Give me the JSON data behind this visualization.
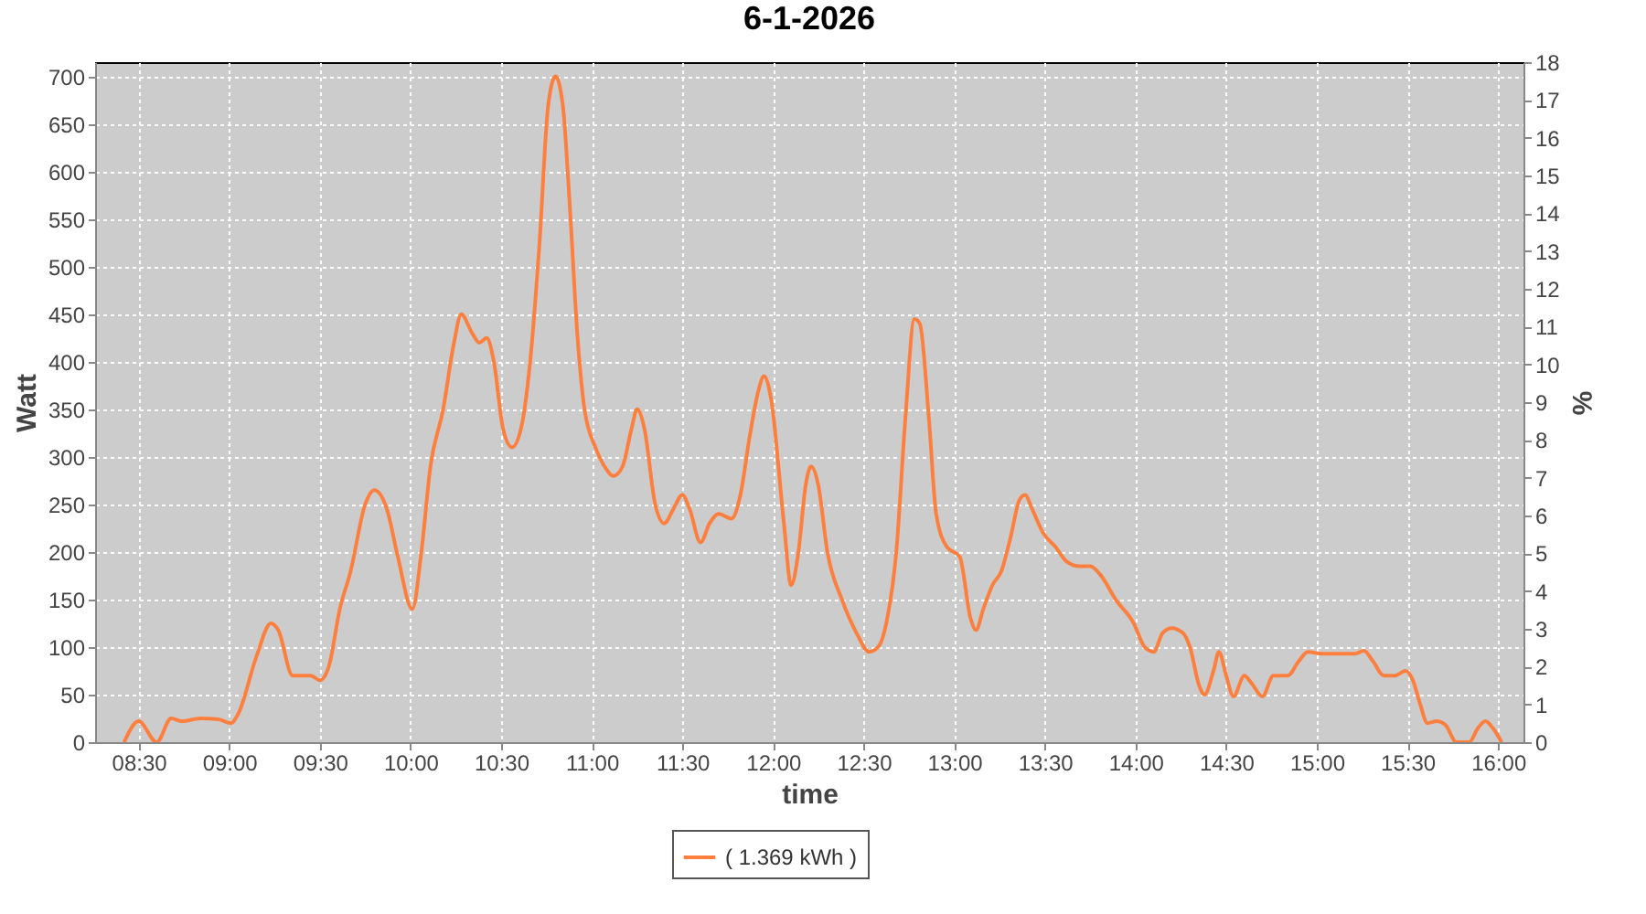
{
  "chart_data": {
    "type": "line",
    "title": "6-1-2026",
    "xlabel": "time",
    "ylabel": "Watt",
    "y2label": "%",
    "x": [
      8.42,
      8.5,
      8.6,
      8.68,
      8.74,
      8.84,
      8.94,
      9.01,
      9.05,
      9.15,
      9.23,
      9.27,
      9.35,
      9.45,
      9.5,
      9.55,
      9.61,
      9.67,
      9.75,
      9.8,
      9.87,
      9.93,
      10.01,
      10.06,
      10.11,
      10.18,
      10.24,
      10.28,
      10.34,
      10.38,
      10.42,
      10.46,
      10.51,
      10.56,
      10.61,
      10.66,
      10.71,
      10.76,
      10.8,
      10.84,
      10.88,
      10.92,
      10.96,
      11.02,
      11.07,
      11.12,
      11.17,
      11.22,
      11.25,
      11.29,
      11.35,
      11.4,
      11.45,
      11.5,
      11.54,
      11.6,
      11.65,
      11.7,
      11.77,
      11.82,
      11.87,
      11.92,
      11.95,
      11.99,
      12.06,
      12.1,
      12.14,
      12.18,
      12.21,
      12.25,
      12.3,
      12.38,
      12.46,
      12.53,
      12.58,
      12.63,
      12.68,
      12.73,
      12.78,
      12.81,
      12.86,
      12.9,
      12.96,
      13.03,
      13.09,
      13.12,
      13.16,
      13.21,
      13.26,
      13.31,
      13.36,
      13.39,
      13.43,
      13.49,
      13.56,
      13.62,
      13.69,
      13.75,
      13.81,
      13.89,
      13.99,
      14.05,
      14.1,
      14.15,
      14.2,
      14.26,
      14.3,
      14.35,
      14.38,
      14.43,
      14.46,
      14.5,
      14.54,
      14.6,
      14.64,
      14.7,
      14.76,
      14.84,
      14.9,
      14.95,
      15.03,
      15.11,
      15.21,
      15.26,
      15.31,
      15.37,
      15.43,
      15.49,
      15.53,
      15.57,
      15.61,
      15.66,
      15.71,
      15.77,
      15.84,
      15.89,
      15.93,
      15.97,
      16.02
    ],
    "series": [
      {
        "name": "( 1.369 kWh )",
        "color": "#ff7f3f",
        "values": [
          0,
          22,
          0,
          25,
          22,
          25,
          24,
          20,
          30,
          90,
          125,
          118,
          70,
          70,
          65,
          80,
          140,
          180,
          250,
          265,
          245,
          195,
          140,
          200,
          290,
          350,
          420,
          450,
          430,
          420,
          425,
          400,
          330,
          310,
          330,
          400,
          520,
          670,
          700,
          670,
          560,
          430,
          350,
          310,
          290,
          280,
          290,
          330,
          350,
          330,
          250,
          230,
          245,
          260,
          245,
          210,
          230,
          240,
          235,
          260,
          320,
          370,
          385,
          360,
          230,
          165,
          200,
          270,
          290,
          270,
          200,
          150,
          115,
          95,
          100,
          130,
          200,
          340,
          445,
          440,
          340,
          240,
          205,
          195,
          130,
          118,
          140,
          165,
          180,
          215,
          255,
          260,
          245,
          220,
          205,
          190,
          185,
          185,
          175,
          150,
          125,
          100,
          95,
          115,
          120,
          115,
          100,
          60,
          50,
          75,
          95,
          70,
          48,
          70,
          62,
          48,
          70,
          70,
          85,
          95,
          93,
          93,
          93,
          96,
          85,
          70,
          70,
          75,
          65,
          40,
          20,
          22,
          18,
          0,
          0,
          15,
          22,
          15,
          0
        ]
      }
    ],
    "xlim": [
      8.26,
      16.14
    ],
    "xticks": [
      {
        "value": 8.5,
        "label": "08:30"
      },
      {
        "value": 9,
        "label": "09:00"
      },
      {
        "value": 9.5,
        "label": "09:30"
      },
      {
        "value": 10,
        "label": "10:00"
      },
      {
        "value": 10.5,
        "label": "10:30"
      },
      {
        "value": 11,
        "label": "11:00"
      },
      {
        "value": 11.5,
        "label": "11:30"
      },
      {
        "value": 12,
        "label": "12:00"
      },
      {
        "value": 12.5,
        "label": "12:30"
      },
      {
        "value": 13,
        "label": "13:00"
      },
      {
        "value": 13.5,
        "label": "13:30"
      },
      {
        "value": 14,
        "label": "14:00"
      },
      {
        "value": 14.5,
        "label": "14:30"
      },
      {
        "value": 15,
        "label": "15:00"
      },
      {
        "value": 15.5,
        "label": "15:30"
      },
      {
        "value": 16,
        "label": "16:00"
      }
    ],
    "ylim": [
      0,
      715
    ],
    "yticks": [
      0,
      50,
      100,
      150,
      200,
      250,
      300,
      350,
      400,
      450,
      500,
      550,
      600,
      650,
      700
    ],
    "y2lim": [
      0,
      18
    ],
    "y2ticks": [
      0,
      1,
      2,
      3,
      4,
      5,
      6,
      7,
      8,
      9,
      10,
      11,
      12,
      13,
      14,
      15,
      16,
      17,
      18
    ],
    "grid": true,
    "legend": "bottom",
    "marker": "none",
    "line_style": "solid"
  }
}
